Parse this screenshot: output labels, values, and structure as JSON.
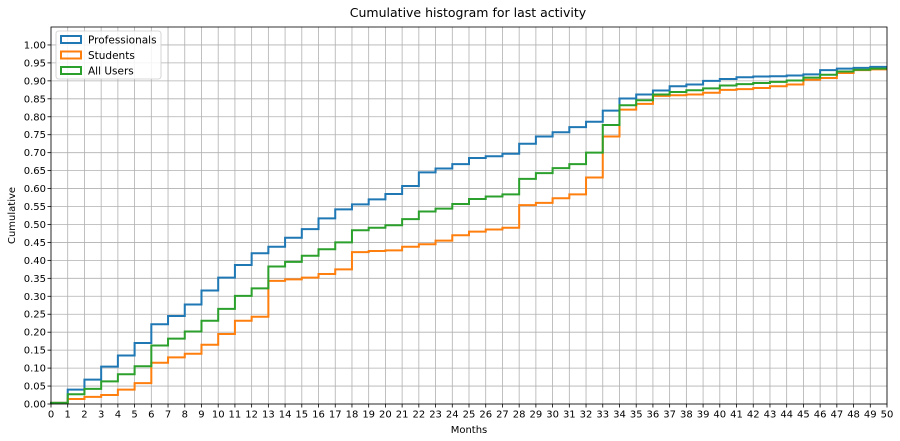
{
  "chart_data": {
    "type": "line",
    "step": "post",
    "title": "Cumulative histogram for last activity",
    "xlabel": "Months",
    "ylabel": "Cumulative",
    "xlim": [
      0,
      50
    ],
    "ylim": [
      0,
      1.05
    ],
    "xticks": [
      0,
      1,
      2,
      3,
      4,
      5,
      6,
      7,
      8,
      9,
      10,
      11,
      12,
      13,
      14,
      15,
      16,
      17,
      18,
      19,
      20,
      21,
      22,
      23,
      24,
      25,
      26,
      27,
      28,
      29,
      30,
      31,
      32,
      33,
      34,
      35,
      36,
      37,
      38,
      39,
      40,
      41,
      42,
      43,
      44,
      45,
      46,
      47,
      48,
      49,
      50
    ],
    "yticks": [
      0,
      0.05,
      0.1,
      0.15,
      0.2,
      0.25,
      0.3,
      0.35,
      0.4,
      0.45,
      0.5,
      0.55,
      0.6,
      0.65,
      0.7,
      0.75,
      0.8,
      0.85,
      0.9,
      0.95,
      1.0
    ],
    "ytick_labels": [
      "0.00",
      "0.05",
      "0.10",
      "0.15",
      "0.20",
      "0.25",
      "0.30",
      "0.35",
      "0.40",
      "0.45",
      "0.50",
      "0.55",
      "0.60",
      "0.65",
      "0.70",
      "0.75",
      "0.80",
      "0.85",
      "0.90",
      "0.95",
      "1.00"
    ],
    "grid": true,
    "legend_position": "top-left",
    "series": [
      {
        "name": "Professionals",
        "color": "#1f77b4",
        "values": [
          0.003,
          0.04,
          0.068,
          0.104,
          0.135,
          0.17,
          0.222,
          0.245,
          0.277,
          0.316,
          0.352,
          0.387,
          0.42,
          0.438,
          0.463,
          0.487,
          0.517,
          0.542,
          0.556,
          0.57,
          0.585,
          0.607,
          0.645,
          0.656,
          0.668,
          0.685,
          0.69,
          0.697,
          0.725,
          0.745,
          0.757,
          0.771,
          0.786,
          0.817,
          0.851,
          0.862,
          0.873,
          0.885,
          0.89,
          0.9,
          0.905,
          0.91,
          0.912,
          0.913,
          0.915,
          0.918,
          0.93,
          0.934,
          0.936,
          0.939
        ]
      },
      {
        "name": "Students",
        "color": "#ff7f0e",
        "values": [
          0.003,
          0.014,
          0.02,
          0.025,
          0.04,
          0.058,
          0.115,
          0.13,
          0.14,
          0.165,
          0.195,
          0.232,
          0.243,
          0.343,
          0.347,
          0.352,
          0.362,
          0.375,
          0.423,
          0.426,
          0.428,
          0.438,
          0.445,
          0.455,
          0.47,
          0.48,
          0.486,
          0.491,
          0.554,
          0.56,
          0.573,
          0.584,
          0.631,
          0.745,
          0.82,
          0.836,
          0.858,
          0.86,
          0.862,
          0.867,
          0.875,
          0.877,
          0.88,
          0.885,
          0.89,
          0.903,
          0.908,
          0.922,
          0.93,
          0.932
        ]
      },
      {
        "name": "All Users",
        "color": "#2ca02c",
        "values": [
          0.003,
          0.027,
          0.042,
          0.063,
          0.083,
          0.105,
          0.163,
          0.182,
          0.202,
          0.232,
          0.265,
          0.301,
          0.322,
          0.383,
          0.396,
          0.413,
          0.431,
          0.45,
          0.484,
          0.491,
          0.498,
          0.515,
          0.536,
          0.544,
          0.557,
          0.571,
          0.578,
          0.584,
          0.627,
          0.643,
          0.657,
          0.668,
          0.7,
          0.777,
          0.832,
          0.846,
          0.862,
          0.869,
          0.874,
          0.879,
          0.887,
          0.891,
          0.894,
          0.897,
          0.901,
          0.909,
          0.917,
          0.926,
          0.931,
          0.934
        ]
      }
    ]
  }
}
